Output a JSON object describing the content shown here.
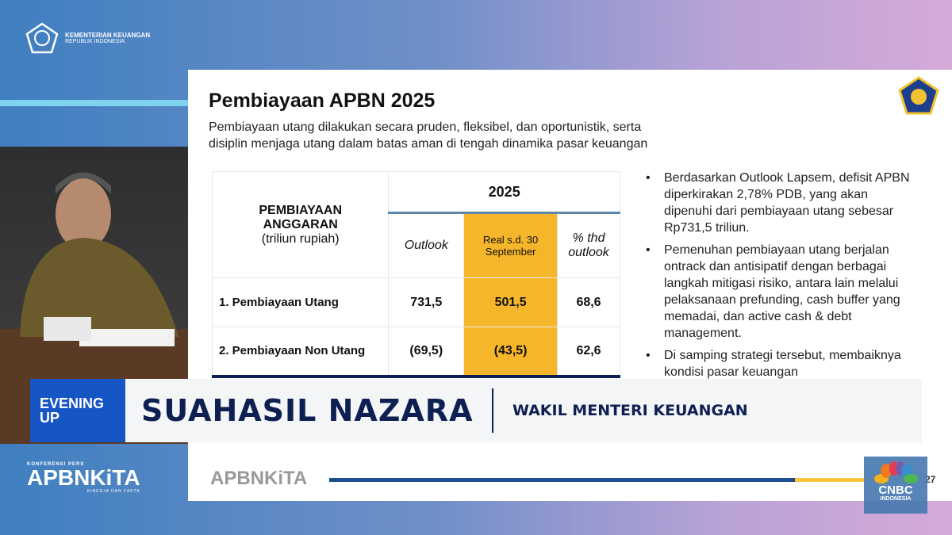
{
  "header": {
    "org_line1": "KEMENTERIAN KEUANGAN",
    "org_line2": "REPUBLIK INDONESIA",
    "logo_icon": "kemenkeu-emblem-icon"
  },
  "slide": {
    "title": "Pembiayaan APBN 2025",
    "subtitle": "Pembiayaan utang dilakukan secara pruden, fleksibel, dan oportunistik, serta disiplin menjaga utang dalam batas aman di tengah dinamika pasar keuangan",
    "table": {
      "row_header_line1": "PEMBIAYAAN",
      "row_header_line2": "ANGGARAN",
      "row_header_unit": "(triliun rupiah)",
      "year": "2025",
      "columns": [
        "Outlook",
        "Real s.d. 30 September",
        "% thd outlook"
      ],
      "rows": [
        {
          "label": "1. Pembiayaan Utang",
          "values": [
            "731,5",
            "501,5",
            "68,6"
          ]
        },
        {
          "label": "2. Pembiayaan Non Utang",
          "values": [
            "(69,5)",
            "(43,5)",
            "62,6"
          ]
        }
      ],
      "highlight_color": "#f6b62b"
    },
    "bullets": [
      "Berdasarkan Outlook Lapsem, defisit APBN diperkirakan 2,78% PDB, yang akan dipenuhi dari pembiayaan utang sebesar Rp731,5 triliun.",
      "Pemenuhan pembiayaan utang berjalan ontrack dan antisipatif dengan berbagai langkah mitigasi risiko, antara lain melalui pelaksanaan prefunding, cash buffer yang memadai, dan active cash & debt management.",
      "Di samping strategi tersebut, membaiknya kondisi pasar keuangan"
    ],
    "footer_brand": "APBNKiTA",
    "page_number": "27"
  },
  "lower_third": {
    "tag": "EVENING UP",
    "name": "SUAHASIL NAZARA",
    "role": "WAKIL MENTERI KEUANGAN",
    "tag_color": "#1556c4"
  },
  "event": {
    "line1": "KONFERENSI PERS",
    "brand": "APBNKiTA",
    "line2": "KINERJA DAN FAKTA"
  },
  "channel": {
    "name": "CNBC",
    "sub": "INDONESIA"
  }
}
